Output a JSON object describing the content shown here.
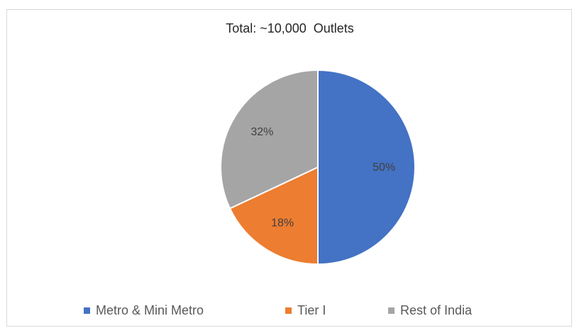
{
  "chart_data": {
    "type": "pie",
    "title": "Total: ~10,000  Outlets",
    "categories": [
      "Metro & Mini Metro",
      "Tier I",
      "Rest of India"
    ],
    "values": [
      50,
      18,
      32
    ],
    "value_labels": [
      "50%",
      "18%",
      "32%"
    ],
    "colors": [
      "#4472c4",
      "#ed7d31",
      "#a5a5a5"
    ],
    "legend_position": "bottom"
  }
}
